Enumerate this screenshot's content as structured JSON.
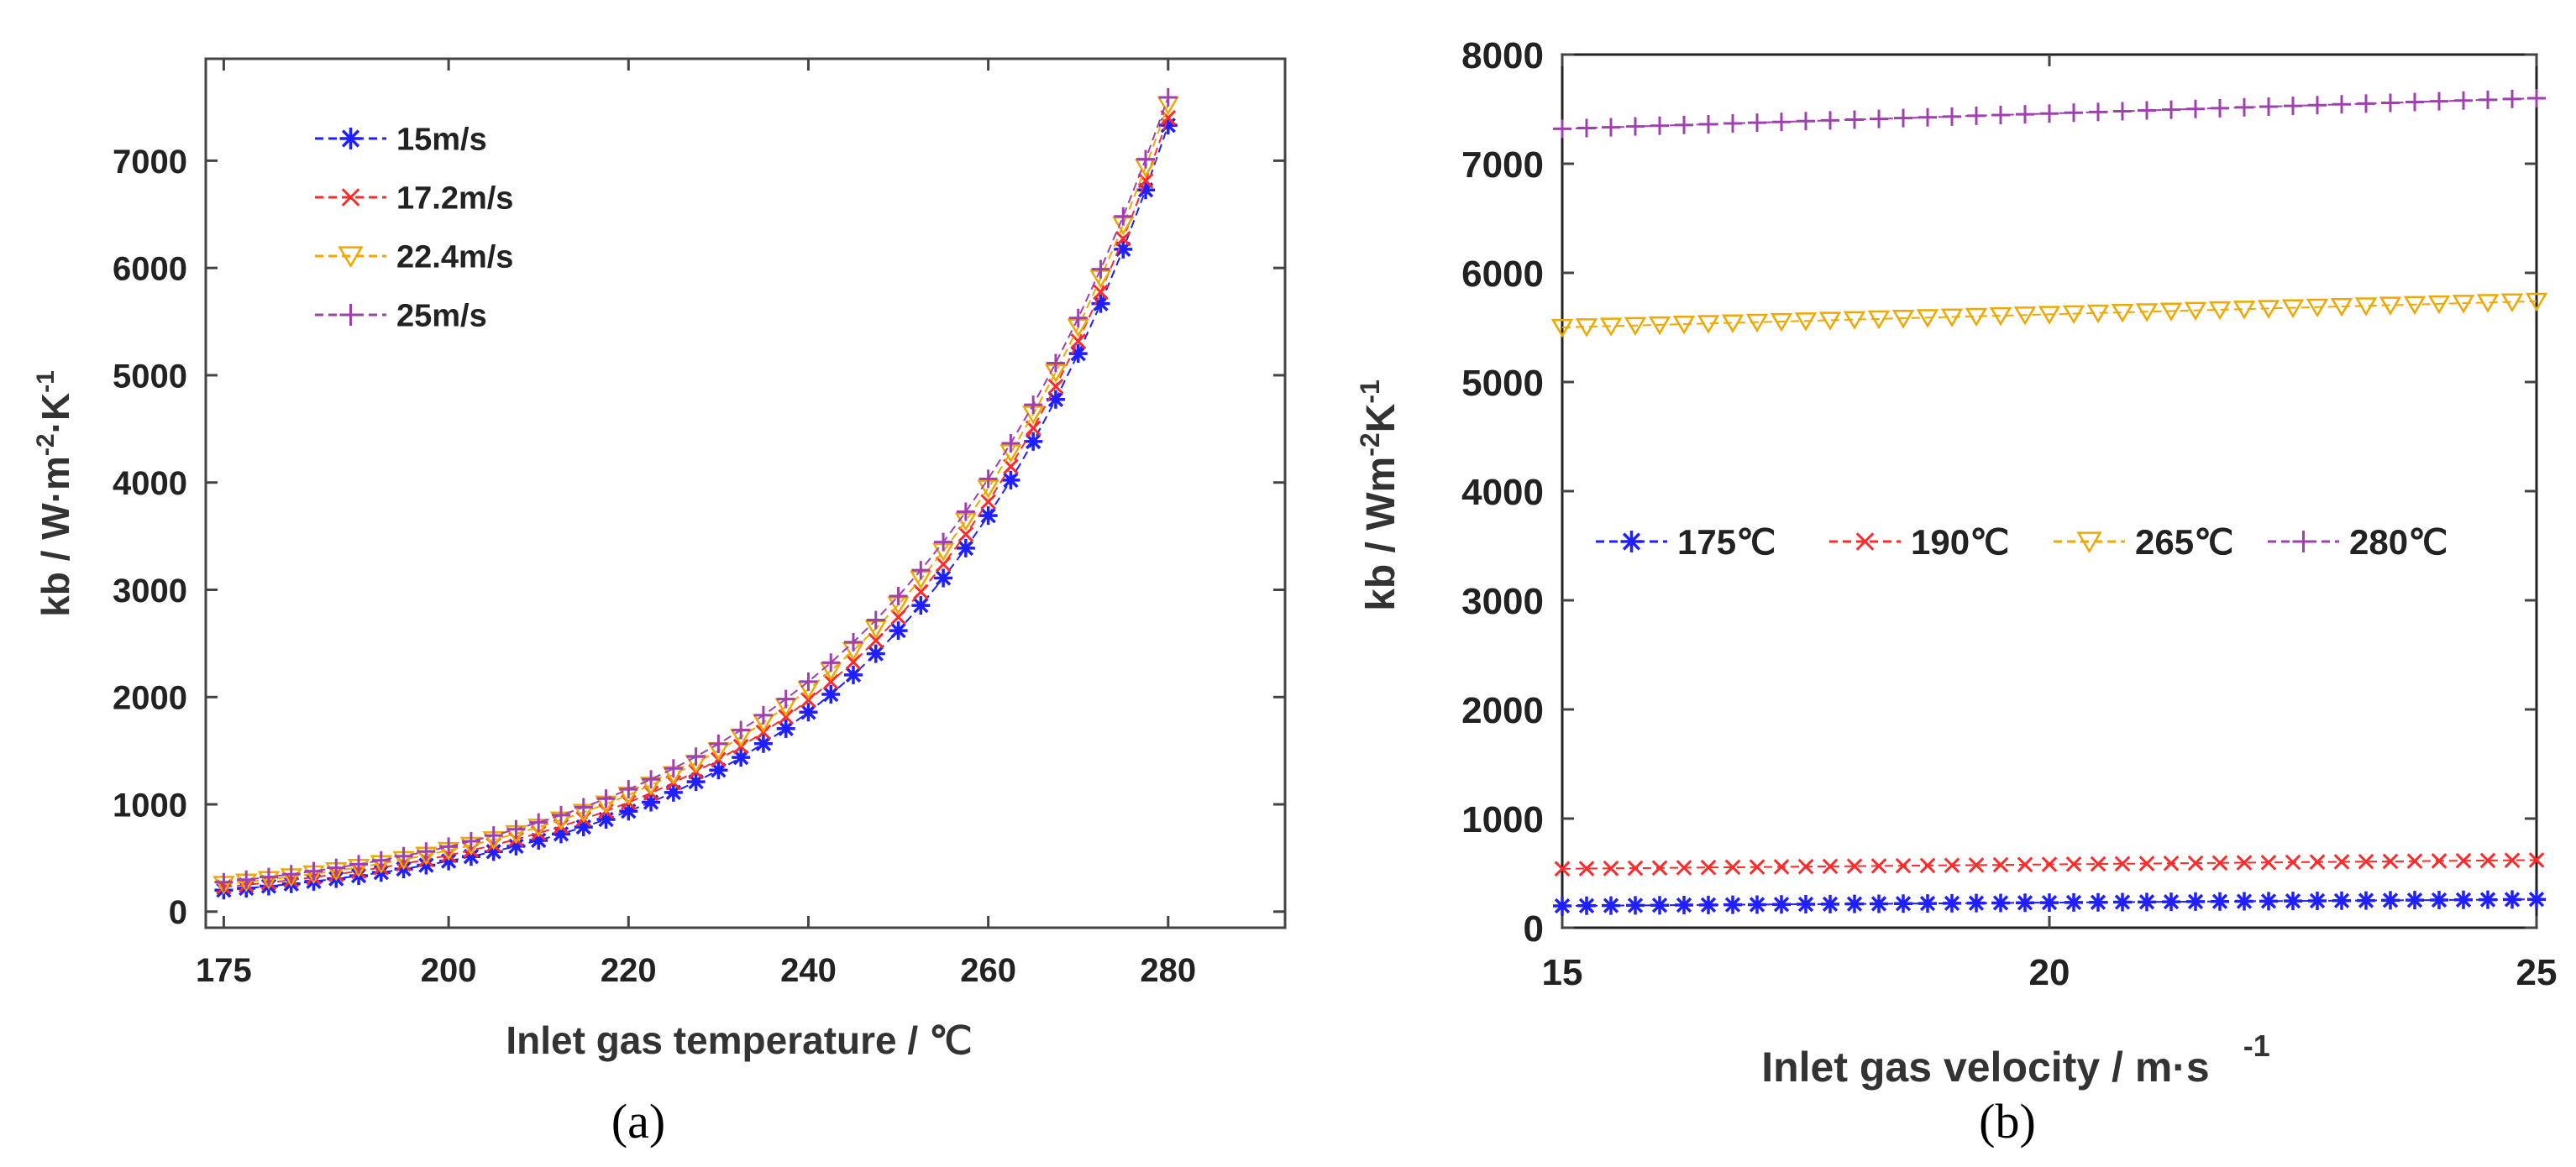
{
  "chart_data": [
    {
      "type": "line",
      "panel_label": "(a)",
      "xlabel": "Inlet gas temperature /  ℃",
      "ylabel": {
        "prefix": "kb / W·m",
        "exp1": "-2",
        "mid": "·K",
        "exp2": "-1"
      },
      "xlim": [
        173,
        293
      ],
      "ylim": [
        -150,
        7950
      ],
      "xticks": [
        175,
        200,
        220,
        240,
        260,
        280
      ],
      "yticks": [
        0,
        1000,
        2000,
        3000,
        4000,
        5000,
        6000,
        7000
      ],
      "x_start": 175,
      "x_end": 280,
      "x_step": 2.5,
      "curve_model": {
        "form": "exponential",
        "x0": 175,
        "x1": 280
      },
      "legend_position": "top-left",
      "series": [
        {
          "name": "15m/s",
          "marker": "asterisk",
          "color": "#1f1fff",
          "y_start": 200,
          "y_end": 7330
        },
        {
          "name": "17.2m/s",
          "marker": "x",
          "color": "#ff2a2a",
          "y_start": 230,
          "y_end": 7400
        },
        {
          "name": "22.4m/s",
          "marker": "triangle-down",
          "color": "#f0a800",
          "y_start": 255,
          "y_end": 7520
        },
        {
          "name": "25m/s",
          "marker": "plus",
          "color": "#a040b0",
          "y_start": 275,
          "y_end": 7590
        }
      ]
    },
    {
      "type": "line",
      "panel_label": "(b)",
      "xlabel": "Inlet gas velocity / m·s",
      "xlabel_exp": "-1",
      "ylabel": {
        "prefix": "kb / Wm",
        "exp1": "-2",
        "mid": "K",
        "exp2": "-1"
      },
      "xlim": [
        15,
        25
      ],
      "ylim": [
        0,
        8000
      ],
      "xticks": [
        15,
        20,
        25
      ],
      "yticks": [
        0,
        1000,
        2000,
        3000,
        4000,
        5000,
        6000,
        7000,
        8000
      ],
      "x_step": 0.25,
      "legend_position": "center",
      "series": [
        {
          "name": "175℃",
          "marker": "asterisk",
          "color": "#1f1fff",
          "y_start": 200,
          "y_end": 260
        },
        {
          "name": "190℃",
          "marker": "x",
          "color": "#ff2a2a",
          "y_start": 540,
          "y_end": 620
        },
        {
          "name": "265℃",
          "marker": "triangle-down",
          "color": "#f0a800",
          "y_start": 5500,
          "y_end": 5740
        },
        {
          "name": "280℃",
          "marker": "plus",
          "color": "#a040b0",
          "y_start": 7320,
          "y_end": 7600
        }
      ]
    }
  ]
}
